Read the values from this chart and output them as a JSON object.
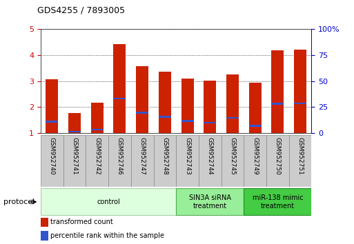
{
  "title": "GDS4255 / 7893005",
  "samples": [
    "GSM952740",
    "GSM952741",
    "GSM952742",
    "GSM952746",
    "GSM952747",
    "GSM952748",
    "GSM952743",
    "GSM952744",
    "GSM952745",
    "GSM952749",
    "GSM952750",
    "GSM952751"
  ],
  "red_values": [
    3.08,
    1.77,
    2.17,
    4.42,
    3.59,
    3.37,
    3.09,
    3.03,
    3.26,
    2.93,
    4.19,
    4.22
  ],
  "blue_values": [
    1.43,
    1.05,
    1.13,
    2.33,
    1.78,
    1.63,
    1.47,
    1.4,
    1.58,
    1.28,
    2.13,
    2.14
  ],
  "ylim": [
    1,
    5
  ],
  "yticks": [
    1,
    2,
    3,
    4,
    5
  ],
  "y2ticks": [
    0,
    25,
    50,
    75,
    100
  ],
  "bar_width": 0.55,
  "red_color": "#cc2200",
  "blue_color": "#3355cc",
  "tick_label_color": "#cc0000",
  "right_tick_color": "#0000cc",
  "protocol_groups": [
    {
      "label": "control",
      "start": 0,
      "end": 5,
      "color": "#ddffdd",
      "edge": "#aaccaa"
    },
    {
      "label": "SIN3A siRNA\ntreatment",
      "start": 6,
      "end": 8,
      "color": "#99ee99",
      "edge": "#55aa55"
    },
    {
      "label": "miR-138 mimic\ntreatment",
      "start": 9,
      "end": 11,
      "color": "#44cc44",
      "edge": "#228822"
    }
  ],
  "legend_items": [
    {
      "label": "transformed count",
      "color": "#cc2200"
    },
    {
      "label": "percentile rank within the sample",
      "color": "#3355cc"
    }
  ],
  "protocol_label": "protocol",
  "figsize": [
    5.13,
    3.54
  ],
  "dpi": 100
}
